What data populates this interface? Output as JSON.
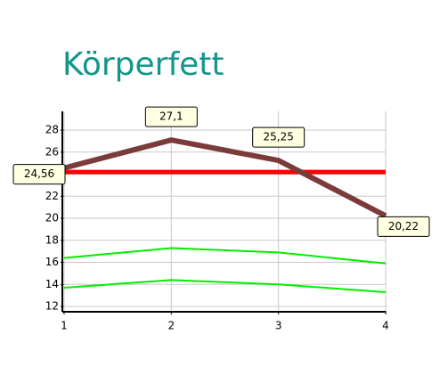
{
  "chart_data": {
    "type": "line",
    "title": "Körperfett",
    "x": [
      1,
      2,
      3,
      4
    ],
    "xlim": [
      1,
      4
    ],
    "xticks": [
      1,
      2,
      3,
      4
    ],
    "ylim": [
      11.6,
      29.7
    ],
    "yticks": [
      12,
      14,
      16,
      18,
      20,
      22,
      24,
      26,
      28
    ],
    "grid": true,
    "series": [
      {
        "color": "#00ee00",
        "values": [
          13.7,
          14.4,
          14.0,
          13.3
        ]
      },
      {
        "color": "#00ee00",
        "values": [
          16.4,
          17.3,
          16.9,
          15.9
        ]
      },
      {
        "color": "#ff0000",
        "values": [
          24.2,
          24.2,
          24.2,
          24.2
        ]
      },
      {
        "color": "#7b3b3b",
        "values": [
          24.56,
          27.1,
          25.25,
          20.22
        ],
        "value_labels": [
          "24,56",
          "27,1",
          "25,25",
          "20,22"
        ]
      }
    ]
  }
}
